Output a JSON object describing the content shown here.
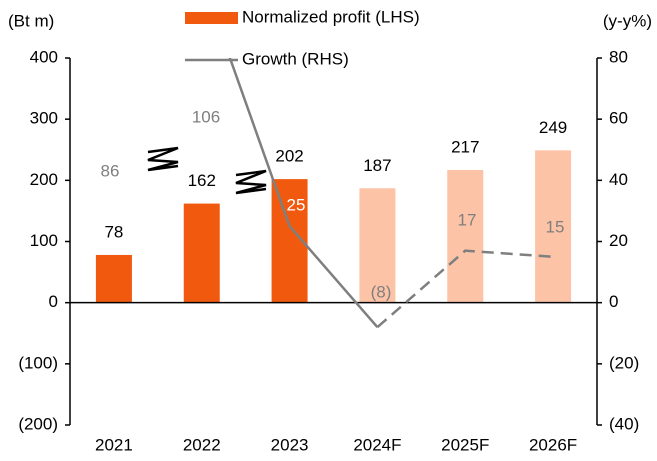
{
  "chart_data": {
    "type": "bar_line",
    "y_label": "(Bt m)",
    "y2_label": "(y-y%)",
    "categories": [
      "2021",
      "2022",
      "2023",
      "2024F",
      "2025F",
      "2026F"
    ],
    "forecast": [
      false,
      false,
      false,
      true,
      true,
      true
    ],
    "series": [
      {
        "name": "Normalized profit (LHS)",
        "type": "bar",
        "color": "#f15a0e",
        "forecast_color": "#fcc3a7",
        "values": [
          78,
          162,
          202,
          187,
          217,
          249
        ]
      },
      {
        "name": "Growth (RHS)",
        "type": "line",
        "axis": "y2",
        "color": "#7f7f7f",
        "values": [
          86,
          106,
          25,
          -8,
          17,
          15
        ],
        "value_labels": [
          "86",
          "106",
          "25",
          "(8)",
          "17",
          "15"
        ]
      }
    ],
    "ylim": [
      -200,
      400
    ],
    "yticks": [
      {
        "value": -200,
        "label": "(200)"
      },
      {
        "value": -100,
        "label": "(100)"
      },
      0,
      100,
      200,
      300,
      400
    ],
    "y2lim": [
      -40,
      80
    ],
    "y2ticks": [
      {
        "value": -40,
        "label": "(40)"
      },
      {
        "value": -20,
        "label": "(20)"
      },
      0,
      20,
      40,
      60,
      80
    ],
    "grid": false
  }
}
